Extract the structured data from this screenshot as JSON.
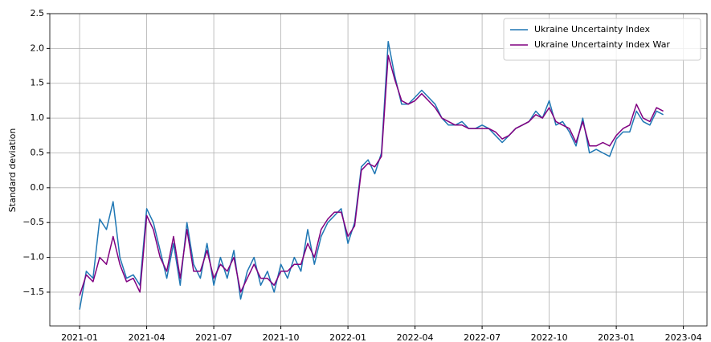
{
  "chart_data": {
    "type": "line",
    "ylabel": "Standard deviation",
    "x": [
      2021.0,
      2021.025,
      2021.05,
      2021.075,
      2021.1,
      2021.125,
      2021.15,
      2021.175,
      2021.2,
      2021.225,
      2021.25,
      2021.275,
      2021.3,
      2021.325,
      2021.35,
      2021.375,
      2021.4,
      2021.425,
      2021.45,
      2021.475,
      2021.5,
      2021.525,
      2021.55,
      2021.575,
      2021.6,
      2021.625,
      2021.65,
      2021.675,
      2021.7,
      2021.725,
      2021.75,
      2021.775,
      2021.8,
      2021.825,
      2021.85,
      2021.875,
      2021.9,
      2021.925,
      2021.95,
      2021.975,
      2022.0,
      2022.025,
      2022.05,
      2022.075,
      2022.1,
      2022.125,
      2022.15,
      2022.175,
      2022.2,
      2022.225,
      2022.25,
      2022.275,
      2022.3,
      2022.325,
      2022.35,
      2022.375,
      2022.4,
      2022.425,
      2022.45,
      2022.475,
      2022.5,
      2022.525,
      2022.55,
      2022.575,
      2022.6,
      2022.625,
      2022.65,
      2022.675,
      2022.7,
      2022.725,
      2022.75,
      2022.775,
      2022.8,
      2022.825,
      2022.85,
      2022.875,
      2022.9,
      2022.925,
      2022.95,
      2022.975,
      2023.0,
      2023.025,
      2023.05,
      2023.075,
      2023.1,
      2023.125,
      2023.15,
      2023.175
    ],
    "series": [
      {
        "name": "Ukraine Uncertainty Index",
        "color": "#1f77b4",
        "values": [
          -1.75,
          -1.2,
          -1.3,
          -0.45,
          -0.6,
          -0.2,
          -1.0,
          -1.3,
          -1.25,
          -1.4,
          -0.3,
          -0.5,
          -0.9,
          -1.3,
          -0.8,
          -1.4,
          -0.5,
          -1.1,
          -1.3,
          -0.8,
          -1.4,
          -1.0,
          -1.3,
          -0.9,
          -1.6,
          -1.2,
          -1.0,
          -1.4,
          -1.2,
          -1.5,
          -1.1,
          -1.3,
          -1.0,
          -1.2,
          -0.6,
          -1.1,
          -0.7,
          -0.5,
          -0.4,
          -0.3,
          -0.8,
          -0.5,
          0.3,
          0.4,
          0.2,
          0.5,
          2.1,
          1.6,
          1.2,
          1.2,
          1.3,
          1.4,
          1.3,
          1.2,
          1.0,
          0.9,
          0.9,
          0.95,
          0.85,
          0.85,
          0.9,
          0.85,
          0.75,
          0.65,
          0.75,
          0.85,
          0.9,
          0.95,
          1.1,
          1.0,
          1.25,
          0.9,
          0.95,
          0.8,
          0.6,
          1.0,
          0.5,
          0.55,
          0.5,
          0.45,
          0.7,
          0.8,
          0.8,
          1.1,
          0.95,
          0.9,
          1.1,
          1.05
        ]
      },
      {
        "name": "Ukraine Uncertainty Index War",
        "color": "#800080",
        "values": [
          -1.55,
          -1.25,
          -1.35,
          -1.0,
          -1.1,
          -0.7,
          -1.1,
          -1.35,
          -1.3,
          -1.5,
          -0.4,
          -0.6,
          -1.0,
          -1.2,
          -0.7,
          -1.3,
          -0.6,
          -1.2,
          -1.2,
          -0.9,
          -1.3,
          -1.1,
          -1.2,
          -1.0,
          -1.5,
          -1.3,
          -1.1,
          -1.3,
          -1.3,
          -1.4,
          -1.2,
          -1.2,
          -1.1,
          -1.1,
          -0.8,
          -1.0,
          -0.6,
          -0.45,
          -0.35,
          -0.35,
          -0.7,
          -0.55,
          0.25,
          0.35,
          0.3,
          0.45,
          1.9,
          1.55,
          1.25,
          1.2,
          1.25,
          1.35,
          1.25,
          1.15,
          1.0,
          0.95,
          0.9,
          0.9,
          0.85,
          0.85,
          0.85,
          0.85,
          0.8,
          0.7,
          0.75,
          0.85,
          0.9,
          0.95,
          1.05,
          1.0,
          1.15,
          0.95,
          0.9,
          0.85,
          0.65,
          0.95,
          0.6,
          0.6,
          0.65,
          0.6,
          0.75,
          0.85,
          0.9,
          1.2,
          1.0,
          0.95,
          1.15,
          1.1
        ]
      }
    ],
    "xlim": [
      2020.889,
      2023.338
    ],
    "xticks": [
      {
        "value": 2021.0,
        "label": "2021-01"
      },
      {
        "value": 2021.25,
        "label": "2021-04"
      },
      {
        "value": 2021.5,
        "label": "2021-07"
      },
      {
        "value": 2021.75,
        "label": "2021-10"
      },
      {
        "value": 2022.0,
        "label": "2022-01"
      },
      {
        "value": 2022.25,
        "label": "2022-04"
      },
      {
        "value": 2022.5,
        "label": "2022-07"
      },
      {
        "value": 2022.75,
        "label": "2022-10"
      },
      {
        "value": 2023.0,
        "label": "2023-01"
      },
      {
        "value": 2023.25,
        "label": "2023-04"
      }
    ],
    "ylim": [
      -1.985,
      2.5
    ],
    "yticks": [
      {
        "value": -1.5,
        "label": "−1.5"
      },
      {
        "value": -1,
        "label": "−1.0"
      },
      {
        "value": -0.5,
        "label": "−0.5"
      },
      {
        "value": 0,
        "label": "0.0"
      },
      {
        "value": 0.5,
        "label": "0.5"
      },
      {
        "value": 1,
        "label": "1.0"
      },
      {
        "value": 1.5,
        "label": "1.5"
      },
      {
        "value": 2,
        "label": "2.0"
      },
      {
        "value": 2.5,
        "label": "2.5"
      }
    ],
    "grid": true,
    "legend": "upper right"
  }
}
